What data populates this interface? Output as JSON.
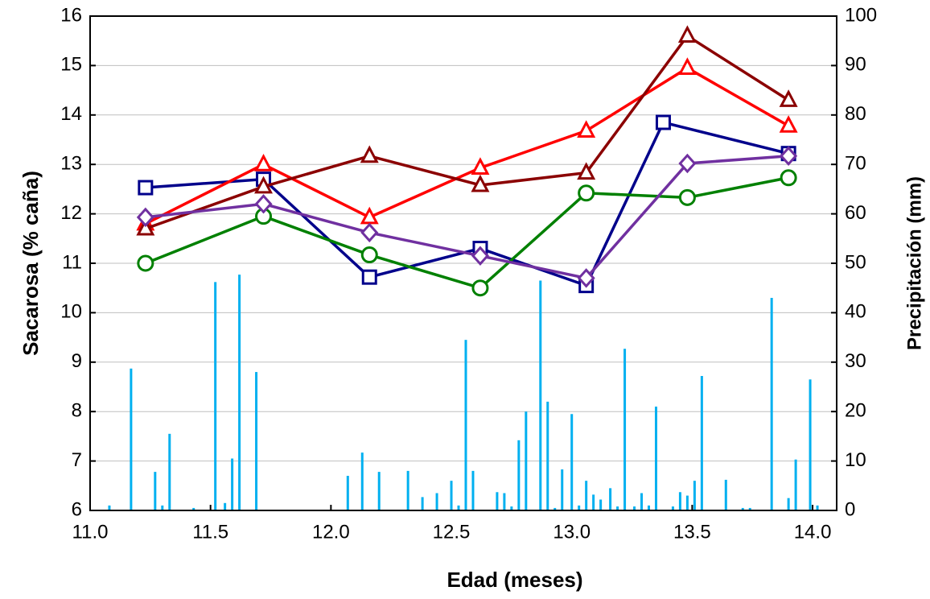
{
  "chart_data": {
    "type": "line",
    "xlabel": "Edad (meses)",
    "ylabel": "Sacarosa (% caña)",
    "y2label": "Precipitación (mm)",
    "xlim": [
      11,
      14.1
    ],
    "xticks": [
      {
        "value": 11,
        "label": "11.0"
      },
      11.5,
      {
        "value": 12,
        "label": "12.0"
      },
      12.5,
      {
        "value": 13,
        "label": "13.0"
      },
      13.5,
      {
        "value": 14,
        "label": "14.0"
      }
    ],
    "ylim": [
      6,
      16
    ],
    "yticks": [
      6,
      7,
      8,
      9,
      10,
      11,
      12,
      13,
      14,
      15,
      16
    ],
    "y2lim": [
      0,
      100
    ],
    "y2ticks": [
      0,
      10,
      20,
      30,
      40,
      50,
      60,
      70,
      80,
      90,
      100
    ],
    "grid": true,
    "series": [
      {
        "marker": "square",
        "color": "#00008b",
        "x": [
          11.23,
          11.72,
          12.16,
          12.62,
          13.06,
          13.38,
          13.9
        ],
        "values": [
          12.53,
          12.7,
          10.72,
          11.3,
          10.55,
          13.85,
          13.22
        ]
      },
      {
        "marker": "triangle",
        "color": "#ff0000",
        "x": [
          11.23,
          11.72,
          12.16,
          12.62,
          13.06,
          13.48,
          13.9
        ],
        "values": [
          11.8,
          13.0,
          11.93,
          12.93,
          13.68,
          14.95,
          13.78
        ]
      },
      {
        "marker": "triangle",
        "color": "#8b0000",
        "x": [
          11.23,
          11.72,
          12.16,
          12.62,
          13.06,
          13.48,
          13.9
        ],
        "values": [
          11.7,
          12.55,
          13.17,
          12.58,
          12.83,
          15.6,
          14.3
        ]
      },
      {
        "marker": "circle",
        "color": "#008000",
        "x": [
          11.23,
          11.72,
          12.16,
          12.62,
          13.06,
          13.48,
          13.9
        ],
        "values": [
          11.0,
          11.95,
          11.17,
          10.5,
          12.42,
          12.33,
          12.73
        ]
      },
      {
        "marker": "diamond",
        "color": "#7030a0",
        "x": [
          11.23,
          11.72,
          12.16,
          12.62,
          13.06,
          13.48,
          13.9
        ],
        "values": [
          11.93,
          12.2,
          11.62,
          11.15,
          10.7,
          13.02,
          13.17
        ]
      },
      {
        "type": "bar",
        "axis": "y2",
        "color": "#00b0f0",
        "x": [
          11.08,
          11.17,
          11.27,
          11.3,
          11.33,
          11.43,
          11.52,
          11.56,
          11.59,
          11.62,
          11.69,
          12.07,
          12.13,
          12.2,
          12.32,
          12.38,
          12.44,
          12.5,
          12.53,
          12.56,
          12.59,
          12.69,
          12.72,
          12.75,
          12.78,
          12.81,
          12.87,
          12.9,
          12.93,
          12.96,
          13.0,
          13.03,
          13.06,
          13.09,
          13.12,
          13.16,
          13.19,
          13.22,
          13.26,
          13.29,
          13.32,
          13.35,
          13.42,
          13.45,
          13.48,
          13.51,
          13.54,
          13.64,
          13.71,
          13.74,
          13.83,
          13.9,
          13.93,
          13.99,
          14.02
        ],
        "values": [
          1,
          28.7,
          7.8,
          1,
          15.5,
          0.5,
          46.2,
          1.5,
          10.5,
          47.7,
          28,
          7,
          11.7,
          7.8,
          8,
          2.7,
          3.5,
          6,
          1,
          34.5,
          8,
          3.7,
          3.5,
          0.8,
          14.2,
          20,
          46.5,
          22,
          0.5,
          8.3,
          19.5,
          1,
          6,
          3.2,
          2.2,
          4.5,
          0.8,
          32.7,
          0.8,
          3.5,
          1,
          21,
          0.8,
          3.7,
          3,
          6,
          27.2,
          6.2,
          0.5,
          0.5,
          43,
          2.5,
          10.3,
          26.5,
          1
        ]
      }
    ]
  }
}
